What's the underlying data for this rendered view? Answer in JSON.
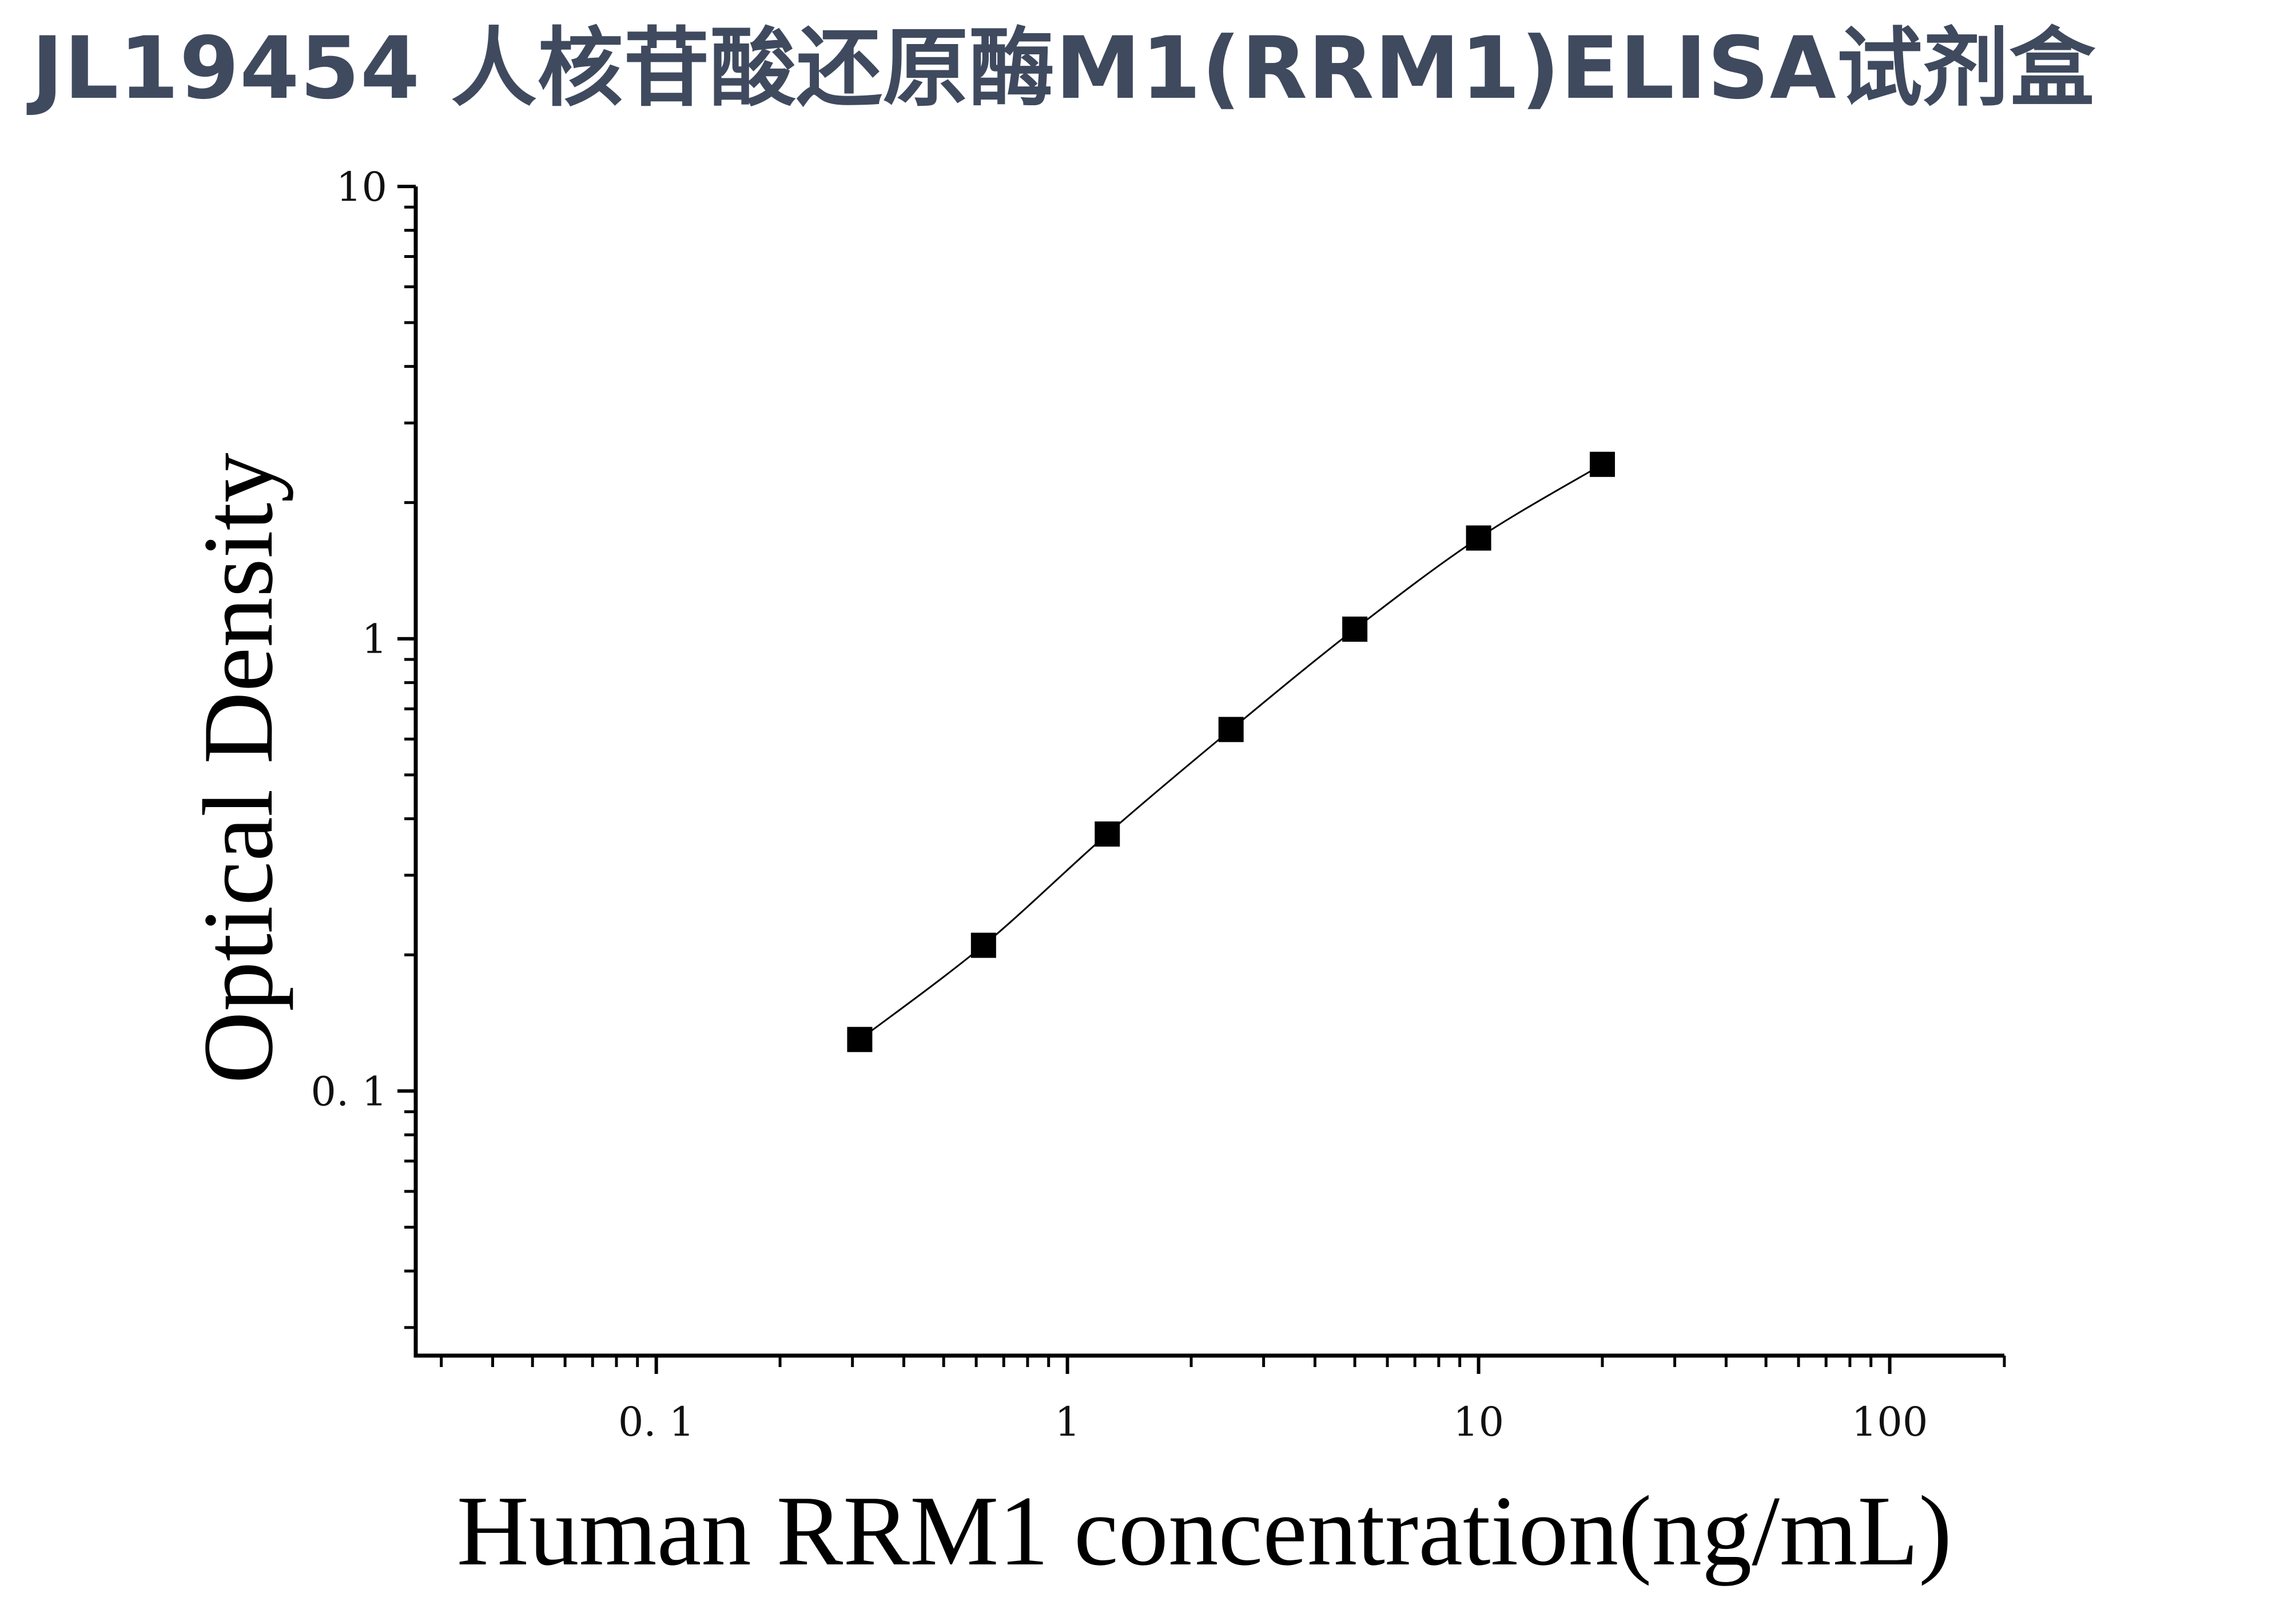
{
  "title": {
    "text": "JL19454 人核苷酸还原酶M1(RRM1)ELISA试剂盒",
    "color": "#3f4a5f"
  },
  "chart_data": {
    "type": "scatter",
    "title": "",
    "xlabel": "Human RRM1 concentration(ng/mL)",
    "ylabel": "Optical Density",
    "x_scale": "log",
    "y_scale": "log",
    "xlim": [
      0.026,
      190
    ],
    "ylim": [
      0.026,
      10
    ],
    "x_ticks": [
      0.1,
      1,
      10,
      100
    ],
    "x_tick_labels": [
      "0. 1",
      "1",
      "10",
      "100"
    ],
    "y_ticks": [
      0.1,
      1,
      10
    ],
    "y_tick_labels": [
      "0. 1",
      "1",
      "10"
    ],
    "grid": false,
    "legend": "none",
    "series": [
      {
        "marker": "square",
        "fit_line": true,
        "color": "#000000",
        "x": [
          0.3125,
          0.625,
          1.25,
          2.5,
          5,
          10,
          20
        ],
        "y": [
          0.13,
          0.21,
          0.37,
          0.63,
          1.05,
          1.67,
          2.43
        ]
      }
    ]
  }
}
